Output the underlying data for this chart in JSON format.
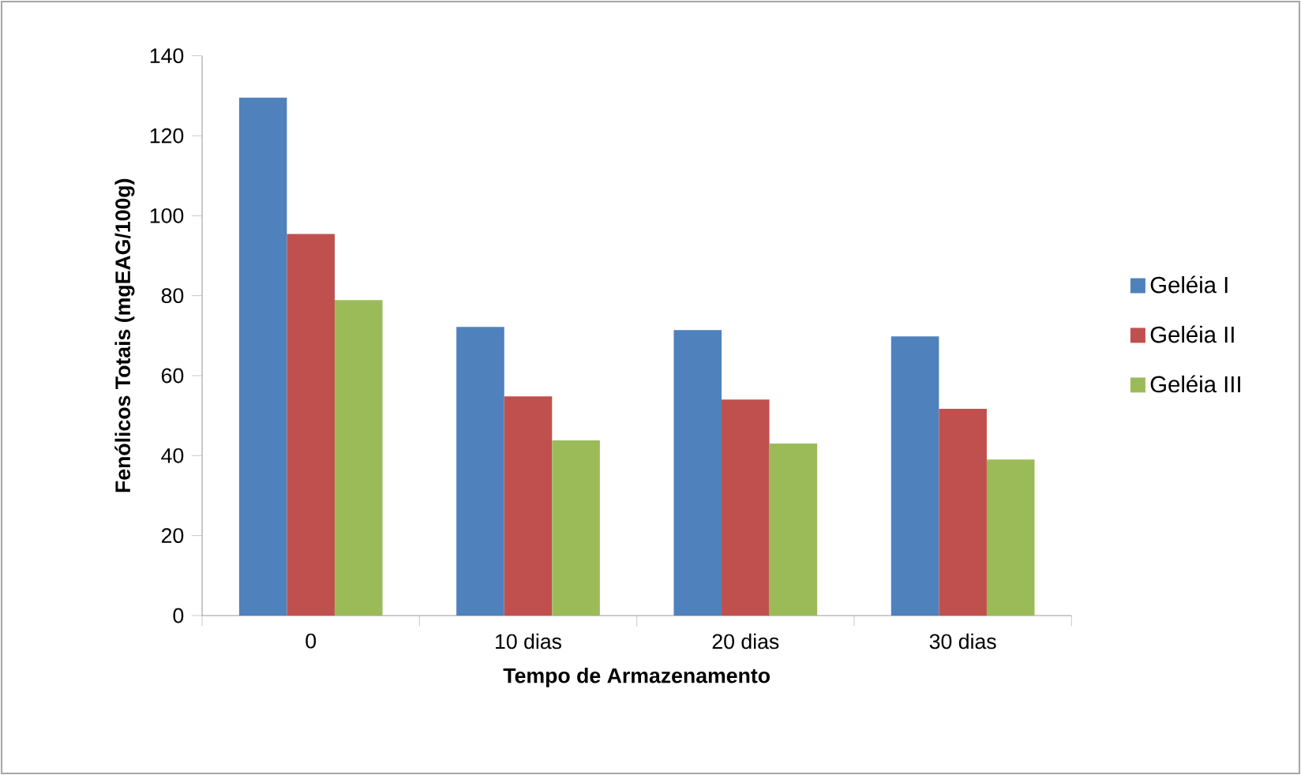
{
  "chart_data": {
    "type": "bar",
    "xlabel": "Tempo de Armazenamento",
    "ylabel": "Fenólicos Totais (mgEAG/100g)",
    "categories": [
      "0",
      "10 dias",
      "20 dias",
      "30 dias"
    ],
    "series": [
      {
        "name": "Geléia I",
        "color": "#4f81bd",
        "values": [
          129.5,
          72.2,
          71.4,
          69.8
        ]
      },
      {
        "name": "Geléia II",
        "color": "#c0504d",
        "values": [
          95.4,
          54.8,
          54.0,
          51.7
        ]
      },
      {
        "name": "Geléia III",
        "color": "#9bbb59",
        "values": [
          78.9,
          43.8,
          43.0,
          39.0
        ]
      }
    ],
    "ylim": [
      0,
      140
    ],
    "yticks": [
      0,
      20,
      40,
      60,
      80,
      100,
      120,
      140
    ],
    "legend": "right"
  }
}
